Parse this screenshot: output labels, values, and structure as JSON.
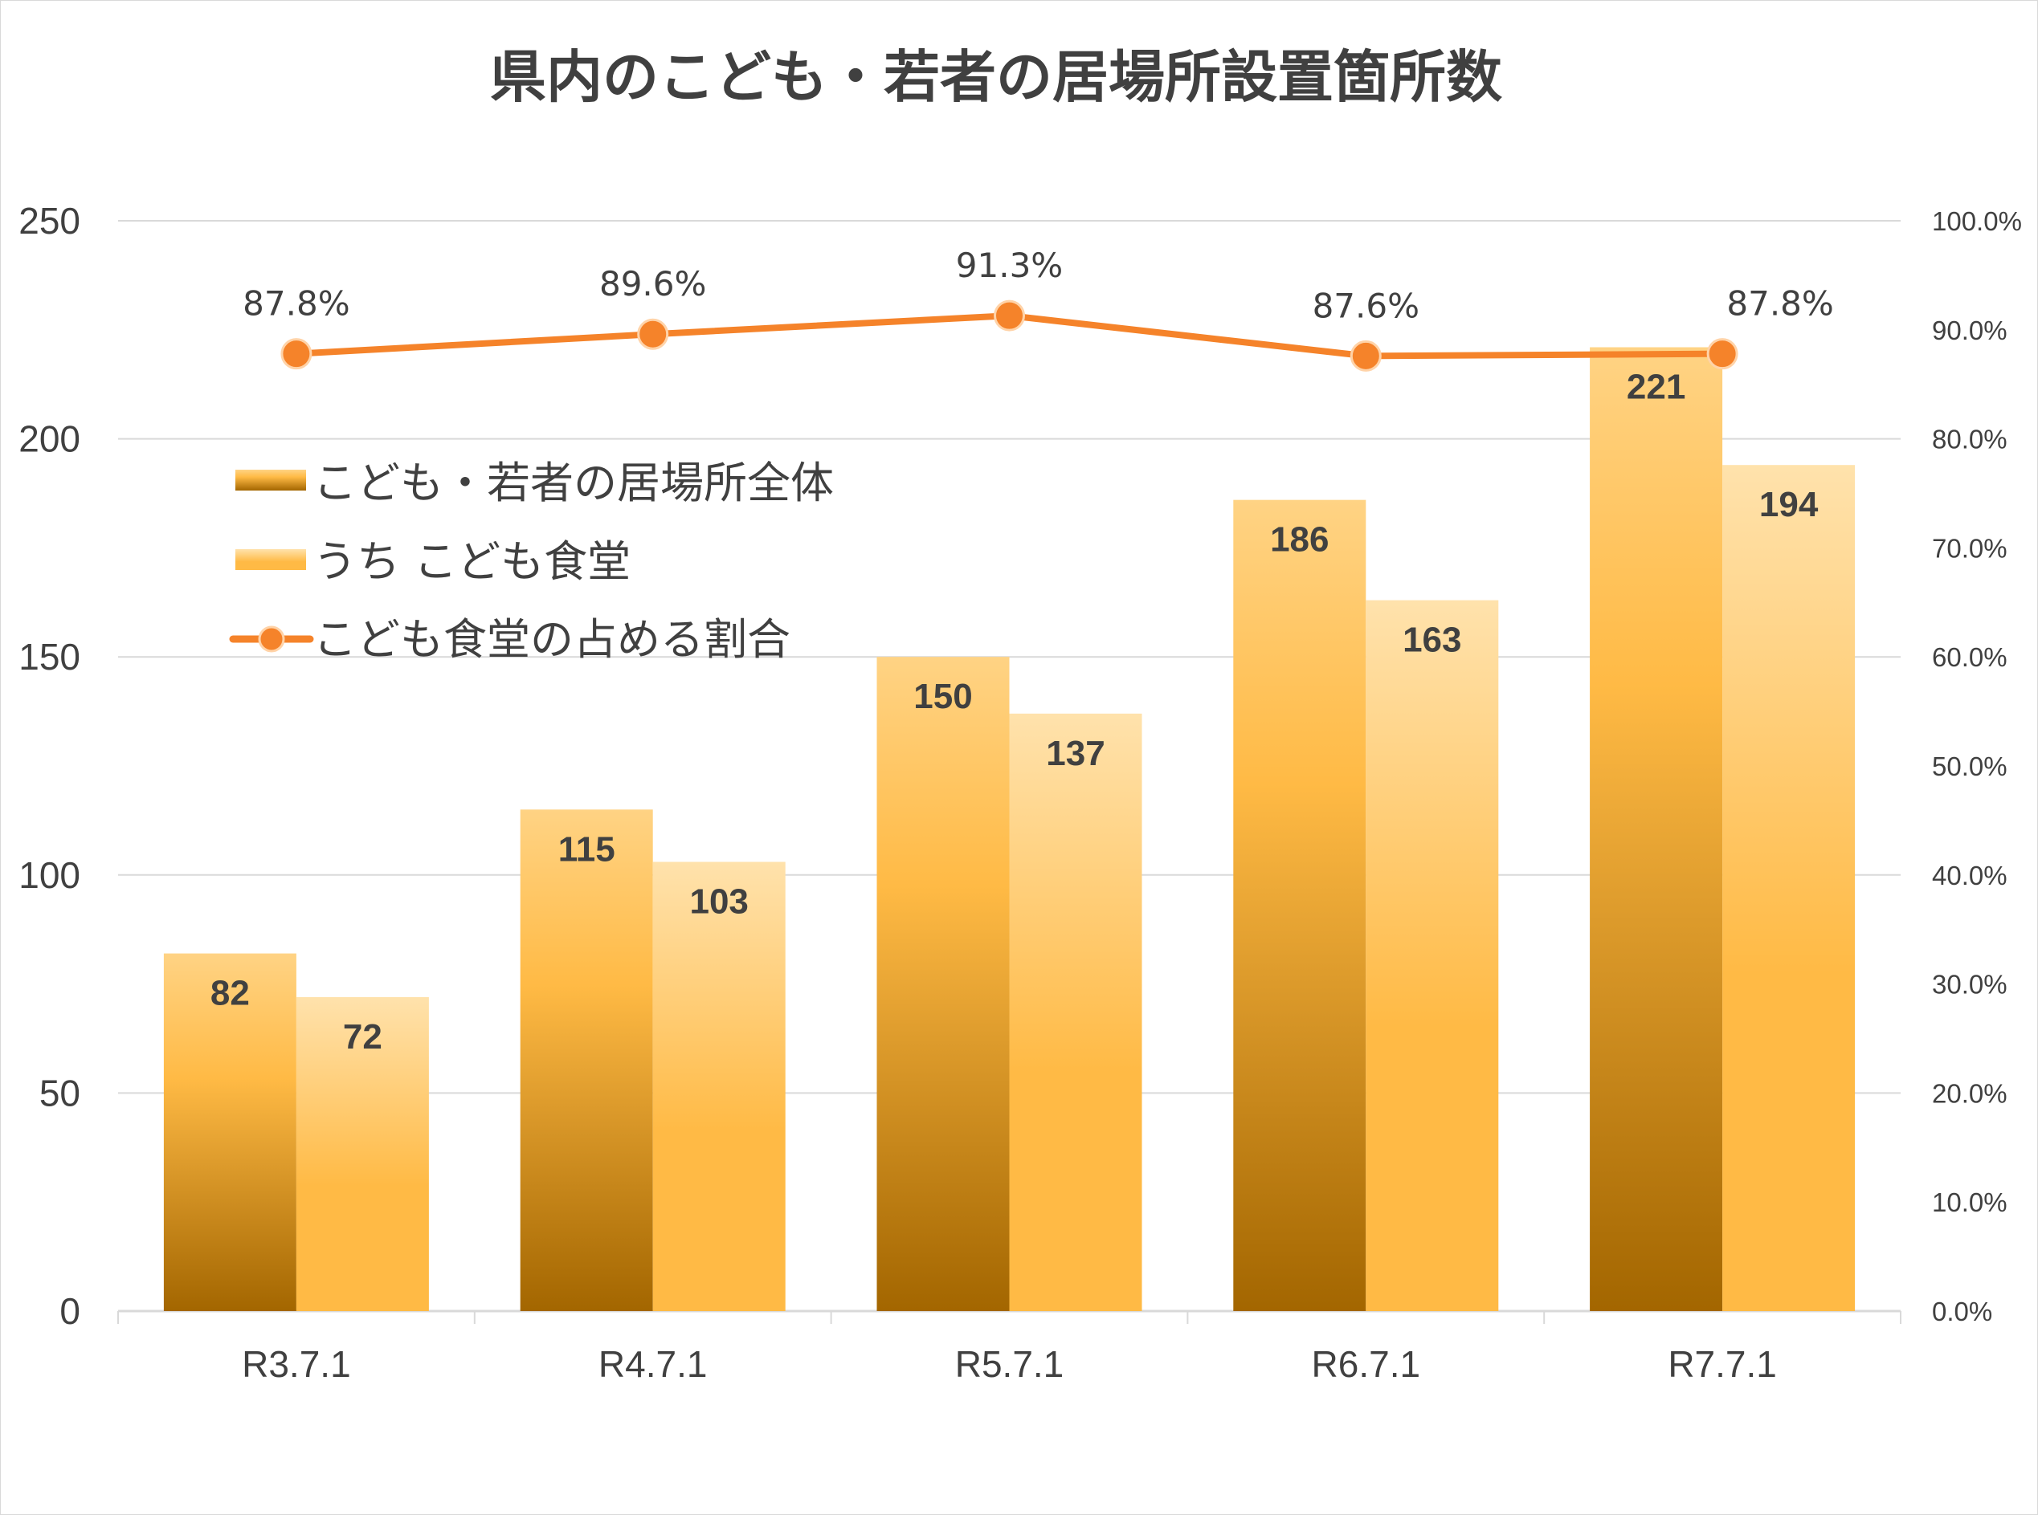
{
  "chart_data": {
    "type": "bar+line",
    "title": "県内のこども・若者の居場所設置箇所数",
    "categories": [
      "R3.7.1",
      "R4.7.1",
      "R5.7.1",
      "R6.7.1",
      "R7.7.1"
    ],
    "series": [
      {
        "name": "こども・若者の居場所全体",
        "type": "bar",
        "axis": "left",
        "values": [
          82,
          115,
          150,
          186,
          221
        ],
        "labels": [
          "82",
          "115",
          "150",
          "186",
          "221"
        ]
      },
      {
        "name": "うち こども食堂",
        "type": "bar",
        "axis": "left",
        "values": [
          72,
          103,
          137,
          163,
          194
        ],
        "labels": [
          "72",
          "103",
          "137",
          "163",
          "194"
        ]
      },
      {
        "name": "こども食堂の占める割合",
        "type": "line",
        "axis": "right",
        "values": [
          87.8,
          89.6,
          91.3,
          87.6,
          87.8
        ],
        "labels": [
          "87.8%",
          "89.6%",
          "91.3%",
          "87.6%",
          "87.8%"
        ]
      }
    ],
    "y_left": {
      "range": [
        0,
        250
      ],
      "ticks": [
        "0",
        "50",
        "100",
        "150",
        "200",
        "250"
      ]
    },
    "y_right": {
      "range": [
        0,
        100
      ],
      "ticks": [
        "0.0%",
        "10.0%",
        "20.0%",
        "30.0%",
        "40.0%",
        "50.0%",
        "60.0%",
        "70.0%",
        "80.0%",
        "90.0%",
        "100.0%"
      ]
    },
    "grid": true,
    "legend_position": "inside-top-left",
    "colors": {
      "bar1_top": "#FFD384",
      "bar1_mid": "#FFBA45",
      "bar1_bottom": "#A36600",
      "bar2_top": "#FFE2AC",
      "bar2_bottom": "#FFBA45",
      "line": "#F5832A",
      "grid": "#d9d9d9",
      "text": "#404040"
    }
  }
}
